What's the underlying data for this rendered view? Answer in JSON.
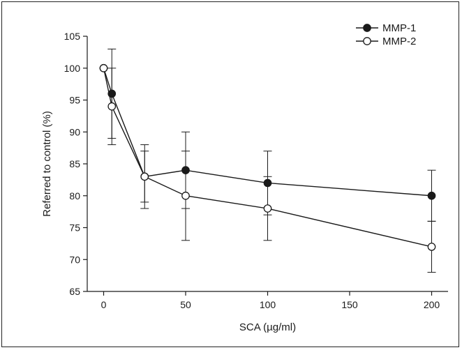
{
  "chart_data": {
    "type": "line",
    "xlabel": "SCA (µg/ml)",
    "ylabel": "Referred to control (%)",
    "x_ticks": [
      0,
      50,
      100,
      150,
      200
    ],
    "y_ticks": [
      65,
      70,
      75,
      80,
      85,
      90,
      95,
      100,
      105
    ],
    "xlim": [
      -10,
      210
    ],
    "ylim": [
      65,
      105
    ],
    "grid": false,
    "legend_position": "top-right",
    "series": [
      {
        "name": "MMP-1",
        "marker": "filled-circle",
        "color": "#1a1a1a",
        "points": [
          {
            "x": 0,
            "y": 100,
            "err": 0
          },
          {
            "x": 5,
            "y": 96,
            "err": 7
          },
          {
            "x": 25,
            "y": 83,
            "err": 4
          },
          {
            "x": 50,
            "y": 84,
            "err": 6
          },
          {
            "x": 100,
            "y": 82,
            "err": 5
          },
          {
            "x": 200,
            "y": 80,
            "err": 4
          }
        ]
      },
      {
        "name": "MMP-2",
        "marker": "open-circle",
        "color": "#1a1a1a",
        "points": [
          {
            "x": 0,
            "y": 100,
            "err": 0
          },
          {
            "x": 5,
            "y": 94,
            "err": 6
          },
          {
            "x": 25,
            "y": 83,
            "err": 5
          },
          {
            "x": 50,
            "y": 80,
            "err": 7
          },
          {
            "x": 100,
            "y": 78,
            "err": 5
          },
          {
            "x": 200,
            "y": 72,
            "err": 4
          }
        ]
      }
    ]
  }
}
